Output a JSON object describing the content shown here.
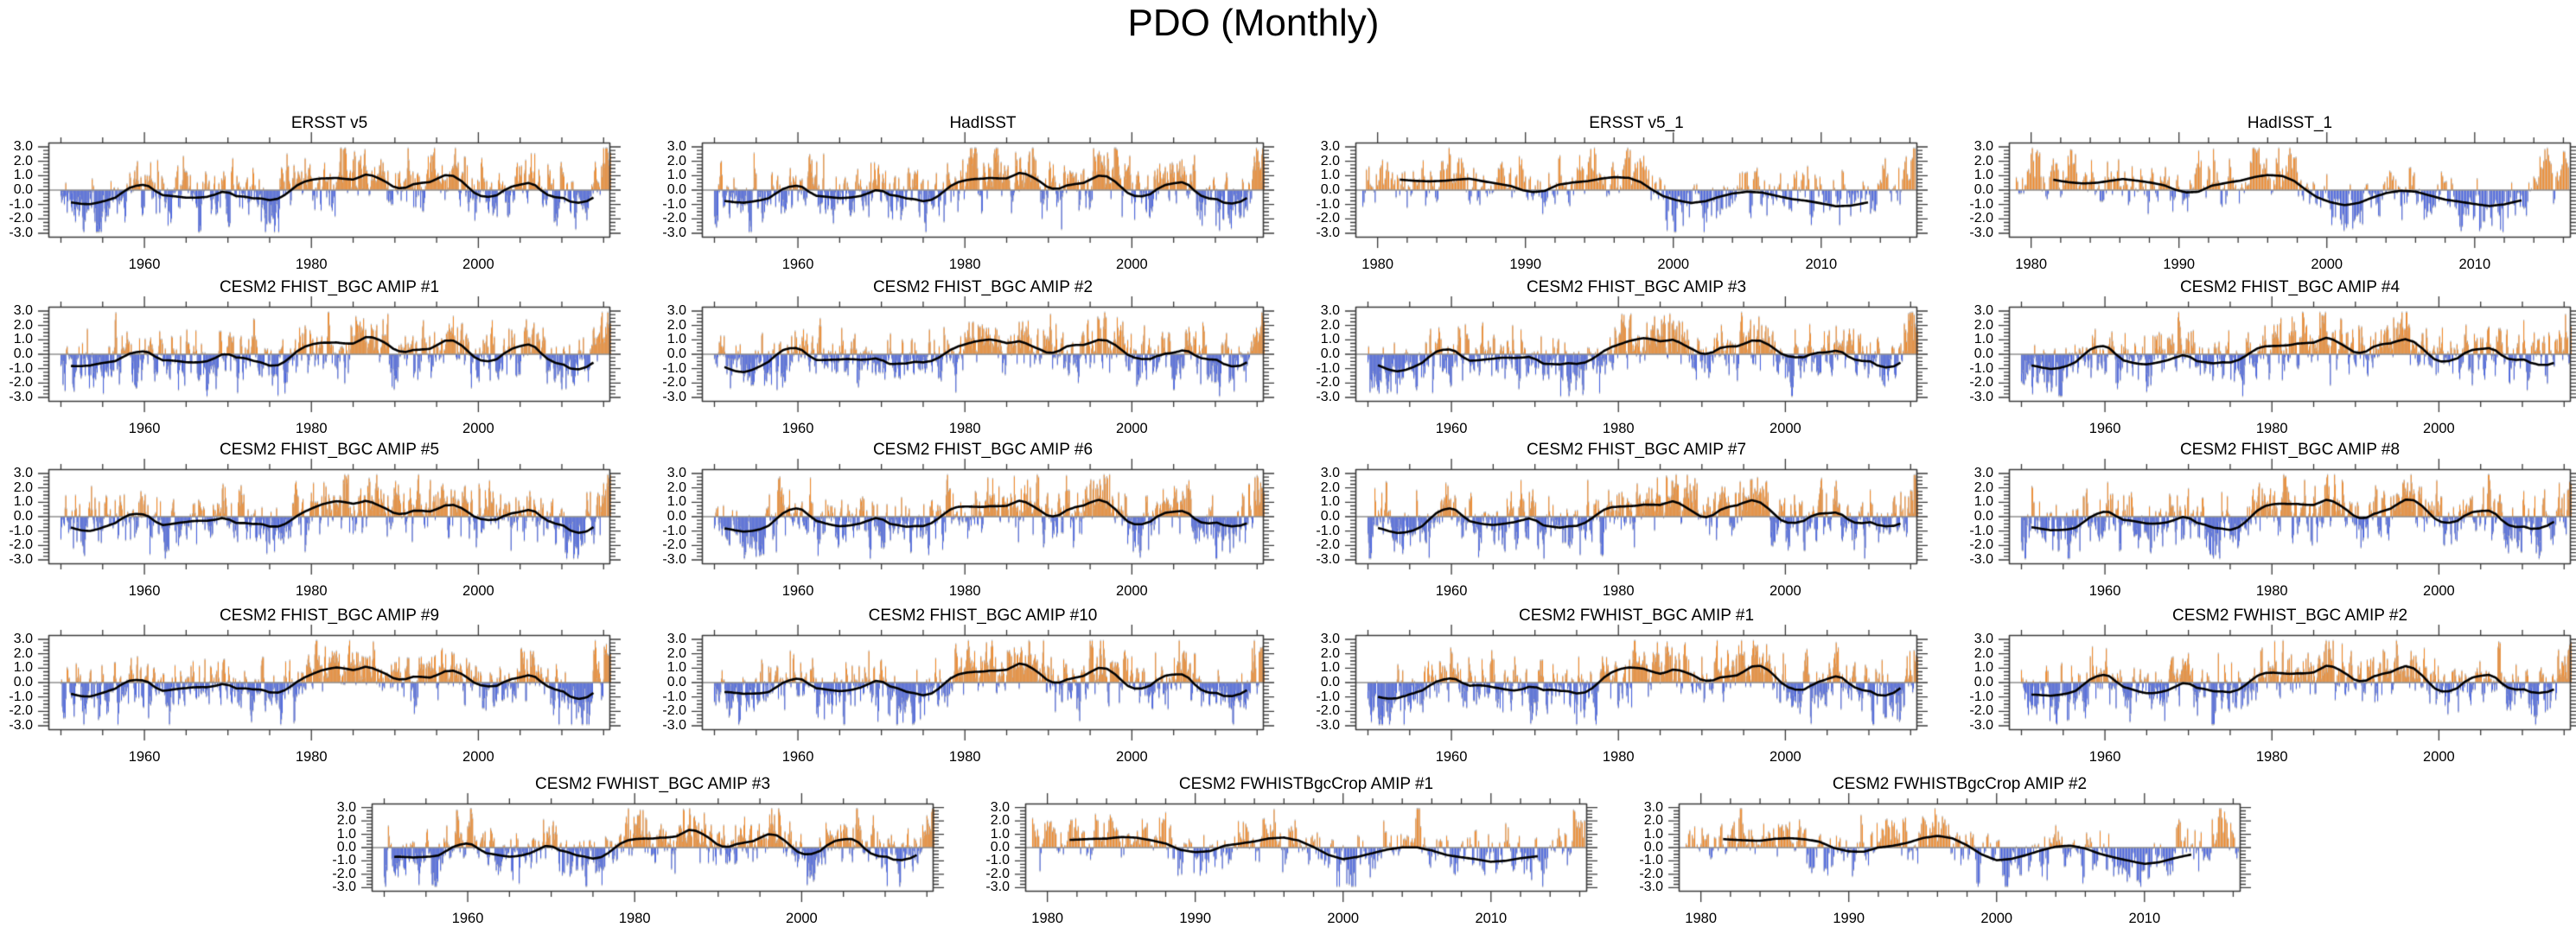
{
  "title": "PDO (Monthly)",
  "colors": {
    "positive_bar": "#F6861E",
    "negative_bar": "#3D5BE4",
    "bar_fringe": "#b9b9b9",
    "smooth_line": "#000000",
    "zero_line": "#8f8f8f",
    "frame": "#3a3a3a",
    "text": "#000000",
    "background": "#ffffff"
  },
  "chart_data": {
    "type": "bar+line multi-panel time series",
    "description": "Monthly PDO index anomalies (orange positive / blue negative bars) with low-pass smoothed index (black line) for observations and CESM2 AMIP ensemble members",
    "ylim": [
      -3.3,
      3.3
    ],
    "y_axis": {
      "tick_values": [
        3,
        2,
        1,
        0,
        -1,
        -2,
        -3
      ],
      "tick_labels": [
        "3.0",
        "2.0",
        "1.0",
        "0.0",
        "-1.0",
        "-2.0",
        "-3.0"
      ],
      "minor_step": 0.25
    },
    "axes": {
      "long": {
        "axis_start": 1948.5,
        "axis_end": 2015.8,
        "data_start": 1950.0,
        "data_end": 2015.9,
        "major_ticks": [
          1960,
          1980,
          2000
        ],
        "major_tick_labels": [
          "1960",
          "1980",
          "2000"
        ],
        "minor_step": 5,
        "line_start": 1951.2,
        "line_end": 2013.8
      },
      "short": {
        "axis_start": 1978.5,
        "axis_end": 2016.5,
        "data_start": 1979.0,
        "data_end": 2016.4,
        "major_ticks": [
          1980,
          1990,
          2000,
          2010
        ],
        "major_tick_labels": [
          "1980",
          "1990",
          "2000",
          "2010"
        ],
        "minor_step": 2,
        "line_start": 1981.5,
        "line_end": 2013.2
      }
    },
    "smoothed_series": {
      "obs_long": {
        "pre": [
          [
            1950.0,
            -0.85
          ]
        ],
        "line": [
          [
            1951.2,
            -0.8
          ],
          [
            1952.5,
            -0.95
          ],
          [
            1953.5,
            -1.0
          ],
          [
            1954.5,
            -0.9
          ],
          [
            1955.5,
            -0.75
          ],
          [
            1956.5,
            -0.55
          ],
          [
            1957.3,
            -0.2
          ],
          [
            1958.2,
            0.15
          ],
          [
            1959.0,
            0.3
          ],
          [
            1959.8,
            0.35
          ],
          [
            1960.5,
            0.25
          ],
          [
            1961.3,
            -0.1
          ],
          [
            1962.2,
            -0.4
          ],
          [
            1963.5,
            -0.45
          ],
          [
            1965.0,
            -0.5
          ],
          [
            1966.5,
            -0.45
          ],
          [
            1967.5,
            -0.4
          ],
          [
            1968.5,
            -0.25
          ],
          [
            1969.3,
            -0.1
          ],
          [
            1970.2,
            -0.2
          ],
          [
            1971.0,
            -0.45
          ],
          [
            1972.0,
            -0.5
          ],
          [
            1973.0,
            -0.6
          ],
          [
            1974.0,
            -0.6
          ],
          [
            1975.0,
            -0.7
          ],
          [
            1976.0,
            -0.6
          ],
          [
            1976.8,
            -0.35
          ],
          [
            1977.5,
            -0.05
          ],
          [
            1978.3,
            0.3
          ],
          [
            1979.2,
            0.55
          ],
          [
            1980.2,
            0.7
          ],
          [
            1981.2,
            0.8
          ],
          [
            1982.2,
            0.85
          ],
          [
            1983.0,
            0.9
          ],
          [
            1984.0,
            0.85
          ],
          [
            1985.0,
            0.8
          ],
          [
            1985.8,
            0.95
          ],
          [
            1986.5,
            1.1
          ],
          [
            1987.3,
            1.0
          ],
          [
            1988.2,
            0.75
          ],
          [
            1989.0,
            0.5
          ],
          [
            1989.8,
            0.2
          ],
          [
            1990.5,
            0.1
          ],
          [
            1991.3,
            0.15
          ],
          [
            1992.2,
            0.4
          ],
          [
            1993.2,
            0.5
          ],
          [
            1994.2,
            0.55
          ],
          [
            1995.0,
            0.75
          ],
          [
            1996.0,
            1.0
          ],
          [
            1997.0,
            0.95
          ],
          [
            1998.0,
            0.6
          ],
          [
            1998.8,
            0.2
          ],
          [
            1999.5,
            -0.15
          ],
          [
            2000.3,
            -0.35
          ],
          [
            2001.2,
            -0.4
          ],
          [
            2002.2,
            -0.3
          ],
          [
            2003.0,
            0.0
          ],
          [
            2004.0,
            0.25
          ],
          [
            2005.0,
            0.35
          ],
          [
            2006.0,
            0.45
          ],
          [
            2006.8,
            0.3
          ],
          [
            2007.5,
            -0.05
          ],
          [
            2008.3,
            -0.35
          ],
          [
            2009.2,
            -0.5
          ],
          [
            2010.2,
            -0.55
          ],
          [
            2011.0,
            -0.8
          ],
          [
            2012.0,
            -0.9
          ],
          [
            2013.0,
            -0.8
          ],
          [
            2013.8,
            -0.55
          ]
        ],
        "post": [
          [
            2014.6,
            0.9
          ],
          [
            2015.9,
            2.0
          ]
        ]
      },
      "obs_short": {
        "pre": [
          [
            1979.0,
            0.45
          ]
        ],
        "line": [
          [
            1981.5,
            0.7
          ],
          [
            1982.5,
            0.6
          ],
          [
            1983.5,
            0.55
          ],
          [
            1984.5,
            0.6
          ],
          [
            1985.3,
            0.7
          ],
          [
            1986.2,
            0.8
          ],
          [
            1987.2,
            0.65
          ],
          [
            1988.2,
            0.5
          ],
          [
            1989.0,
            0.35
          ],
          [
            1989.8,
            0.05
          ],
          [
            1990.5,
            -0.1
          ],
          [
            1991.3,
            -0.05
          ],
          [
            1992.2,
            0.35
          ],
          [
            1993.2,
            0.5
          ],
          [
            1994.2,
            0.6
          ],
          [
            1995.2,
            0.8
          ],
          [
            1996.0,
            0.9
          ],
          [
            1997.0,
            0.85
          ],
          [
            1997.8,
            0.55
          ],
          [
            1998.5,
            0.05
          ],
          [
            1999.3,
            -0.45
          ],
          [
            2000.2,
            -0.75
          ],
          [
            2001.2,
            -0.95
          ],
          [
            2002.2,
            -0.8
          ],
          [
            2003.0,
            -0.5
          ],
          [
            2004.0,
            -0.2
          ],
          [
            2005.0,
            -0.05
          ],
          [
            2006.0,
            -0.1
          ],
          [
            2007.0,
            -0.35
          ],
          [
            2008.0,
            -0.6
          ],
          [
            2009.0,
            -0.75
          ],
          [
            2010.0,
            -0.95
          ],
          [
            2011.0,
            -1.15
          ],
          [
            2012.0,
            -1.1
          ],
          [
            2013.2,
            -0.85
          ]
        ],
        "post": [
          [
            2014.3,
            0.6
          ],
          [
            2016.4,
            1.8
          ]
        ]
      },
      "amip_short": {
        "pre": [
          [
            1979.0,
            0.3
          ]
        ],
        "line": [
          [
            1981.5,
            0.6
          ],
          [
            1983.0,
            0.55
          ],
          [
            1984.0,
            0.5
          ],
          [
            1985.0,
            0.6
          ],
          [
            1986.0,
            0.6
          ],
          [
            1987.0,
            0.5
          ],
          [
            1988.0,
            0.35
          ],
          [
            1989.0,
            -0.05
          ],
          [
            1990.0,
            -0.2
          ],
          [
            1991.0,
            -0.15
          ],
          [
            1992.0,
            0.2
          ],
          [
            1993.0,
            0.3
          ],
          [
            1994.0,
            0.45
          ],
          [
            1995.0,
            0.7
          ],
          [
            1996.0,
            0.8
          ],
          [
            1997.0,
            0.6
          ],
          [
            1998.0,
            0.1
          ],
          [
            1999.0,
            -0.55
          ],
          [
            2000.0,
            -0.95
          ],
          [
            2001.0,
            -0.85
          ],
          [
            2002.0,
            -0.6
          ],
          [
            2003.0,
            -0.3
          ],
          [
            2004.0,
            -0.05
          ],
          [
            2005.0,
            0.05
          ],
          [
            2006.0,
            -0.1
          ],
          [
            2007.0,
            -0.4
          ],
          [
            2008.0,
            -0.6
          ],
          [
            2009.0,
            -0.8
          ],
          [
            2010.0,
            -1.05
          ],
          [
            2011.0,
            -1.0
          ],
          [
            2012.0,
            -0.8
          ],
          [
            2013.2,
            -0.6
          ]
        ],
        "post": [
          [
            2014.5,
            0.5
          ],
          [
            2016.4,
            1.4
          ]
        ]
      }
    },
    "panels": [
      {
        "title": "ERSST v5",
        "row": 1,
        "col": 1,
        "axis": "long",
        "shape": "obs_long",
        "seed": 11,
        "jitter": 0.03
      },
      {
        "title": "HadISST",
        "row": 1,
        "col": 2,
        "axis": "long",
        "shape": "obs_long",
        "seed": 12,
        "jitter": 0.05
      },
      {
        "title": "ERSST v5_1",
        "row": 1,
        "col": 3,
        "axis": "short",
        "shape": "obs_short",
        "seed": 13,
        "jitter": 0.03
      },
      {
        "title": "HadISST_1",
        "row": 1,
        "col": 4,
        "axis": "short",
        "shape": "obs_short",
        "seed": 14,
        "jitter": 0.06
      },
      {
        "title": "CESM2 FHIST_BGC AMIP #1",
        "row": 2,
        "col": 1,
        "axis": "long",
        "shape": "obs_long",
        "seed": 21,
        "jitter": 0.1
      },
      {
        "title": "CESM2 FHIST_BGC AMIP #2",
        "row": 2,
        "col": 2,
        "axis": "long",
        "shape": "obs_long",
        "seed": 22,
        "jitter": 0.1
      },
      {
        "title": "CESM2 FHIST_BGC AMIP #3",
        "row": 2,
        "col": 3,
        "axis": "long",
        "shape": "obs_long",
        "seed": 23,
        "jitter": 0.1
      },
      {
        "title": "CESM2 FHIST_BGC AMIP #4",
        "row": 2,
        "col": 4,
        "axis": "long",
        "shape": "obs_long",
        "seed": 24,
        "jitter": 0.1
      },
      {
        "title": "CESM2 FHIST_BGC AMIP #5",
        "row": 3,
        "col": 1,
        "axis": "long",
        "shape": "obs_long",
        "seed": 25,
        "jitter": 0.1
      },
      {
        "title": "CESM2 FHIST_BGC AMIP #6",
        "row": 3,
        "col": 2,
        "axis": "long",
        "shape": "obs_long",
        "seed": 26,
        "jitter": 0.1
      },
      {
        "title": "CESM2 FHIST_BGC AMIP #7",
        "row": 3,
        "col": 3,
        "axis": "long",
        "shape": "obs_long",
        "seed": 27,
        "jitter": 0.1
      },
      {
        "title": "CESM2 FHIST_BGC AMIP #8",
        "row": 3,
        "col": 4,
        "axis": "long",
        "shape": "obs_long",
        "seed": 28,
        "jitter": 0.1
      },
      {
        "title": "CESM2 FHIST_BGC AMIP #9",
        "row": 4,
        "col": 1,
        "axis": "long",
        "shape": "obs_long",
        "seed": 29,
        "jitter": 0.1
      },
      {
        "title": "CESM2 FHIST_BGC AMIP #10",
        "row": 4,
        "col": 2,
        "axis": "long",
        "shape": "obs_long",
        "seed": 30,
        "jitter": 0.1
      },
      {
        "title": "CESM2 FWHIST_BGC AMIP #1",
        "row": 4,
        "col": 3,
        "axis": "long",
        "shape": "obs_long",
        "seed": 31,
        "jitter": 0.11
      },
      {
        "title": "CESM2 FWHIST_BGC AMIP #2",
        "row": 4,
        "col": 4,
        "axis": "long",
        "shape": "obs_long",
        "seed": 32,
        "jitter": 0.11
      },
      {
        "title": "CESM2 FWHIST_BGC AMIP #3",
        "row": 5,
        "col": 1,
        "axis": "long",
        "shape": "obs_long",
        "seed": 33,
        "jitter": 0.11
      },
      {
        "title": "CESM2 FWHISTBgcCrop AMIP #1",
        "row": 5,
        "col": 2,
        "axis": "short",
        "shape": "amip_short",
        "seed": 34,
        "jitter": 0.08
      },
      {
        "title": "CESM2 FWHISTBgcCrop AMIP #2",
        "row": 5,
        "col": 3,
        "axis": "short",
        "shape": "amip_short",
        "seed": 35,
        "jitter": 0.08
      }
    ]
  }
}
